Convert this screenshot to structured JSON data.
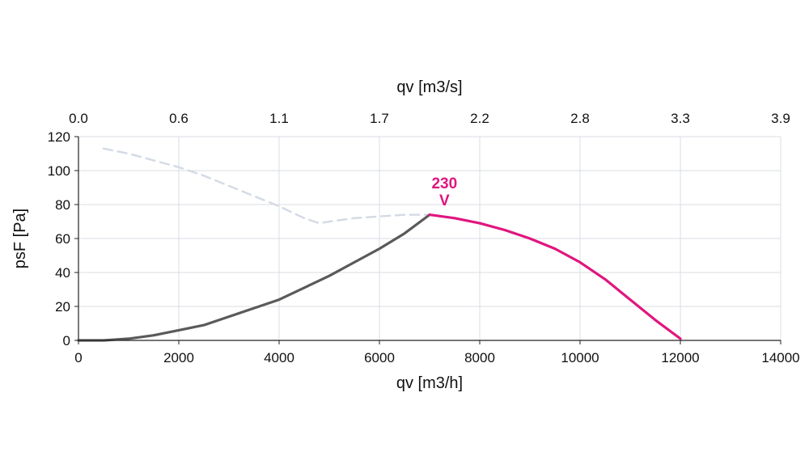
{
  "chart_data": {
    "type": "line",
    "title": "",
    "xlabel": "qv [m3/h]",
    "ylabel": "psF [Pa]",
    "x2label": "qv [m3/s]",
    "xlim": [
      0,
      14000
    ],
    "ylim": [
      0,
      120
    ],
    "x_ticks": [
      "0",
      "2000",
      "4000",
      "6000",
      "8000",
      "10000",
      "12000",
      "14000"
    ],
    "x_tick_values": [
      0,
      2000,
      4000,
      6000,
      8000,
      10000,
      12000,
      14000
    ],
    "y_ticks": [
      "0",
      "20",
      "40",
      "60",
      "80",
      "100",
      "120"
    ],
    "y_tick_values": [
      0,
      20,
      40,
      60,
      80,
      100,
      120
    ],
    "x2_ticks": [
      "0.0",
      "0.6",
      "1.1",
      "1.7",
      "2.2",
      "2.8",
      "3.3",
      "3.9"
    ],
    "x2_tick_values": [
      0,
      2000,
      4000,
      6000,
      8000,
      10000,
      12000,
      14000
    ],
    "grid": true,
    "annotation": {
      "text_line1": "230",
      "text_line2": "V",
      "x": 6650,
      "y": 82,
      "color": "#e0167f"
    },
    "series": [
      {
        "style": "dashed",
        "color": "#d5dbe5",
        "x": [
          500,
          1000,
          1500,
          2000,
          2500,
          3000,
          3500,
          4000,
          4500,
          4800,
          5000,
          5500,
          6000,
          6500,
          7000
        ],
        "y": [
          113,
          110,
          106,
          102,
          97,
          91,
          85,
          79,
          72,
          69,
          70,
          72,
          73,
          74,
          74
        ]
      },
      {
        "style": "solid",
        "color": "#5a5a5a",
        "x": [
          0,
          500,
          1000,
          1500,
          2000,
          2500,
          3000,
          3500,
          4000,
          4500,
          5000,
          5500,
          6000,
          6500,
          7000
        ],
        "y": [
          0,
          0,
          1,
          3,
          6,
          9,
          14,
          19,
          24,
          31,
          38,
          46,
          54,
          63,
          74
        ]
      },
      {
        "style": "solid",
        "color": "#e0167f",
        "x": [
          7000,
          7500,
          8000,
          8500,
          9000,
          9500,
          10000,
          10500,
          11000,
          11500,
          12000
        ],
        "y": [
          74,
          72,
          69,
          65,
          60,
          54,
          46,
          36,
          24,
          12,
          1
        ]
      }
    ]
  }
}
